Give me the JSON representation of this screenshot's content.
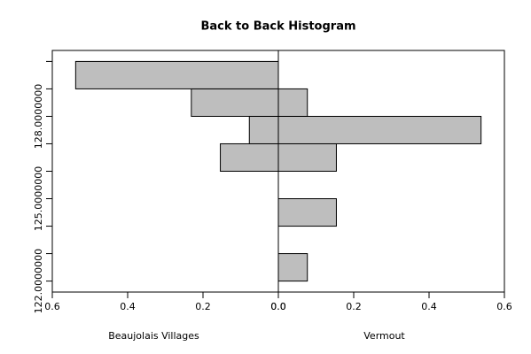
{
  "chart_data": {
    "type": "back-to-back-histogram",
    "title": "Back to Back Histogram",
    "bins": [
      122,
      123,
      124,
      125,
      126,
      127,
      128,
      129,
      130
    ],
    "series": [
      {
        "name": "Beaujolais Villages",
        "color": "#bebebe",
        "side": "left",
        "values": [
          0,
          0,
          0,
          0,
          0.154,
          0.077,
          0.231,
          0.538
        ]
      },
      {
        "name": "Vermout",
        "color": "#bebebe",
        "side": "right",
        "values": [
          0.077,
          0,
          0.154,
          0,
          0.154,
          0.538,
          0.077,
          0
        ]
      }
    ],
    "xlim": [
      0,
      0.6
    ],
    "xticks": [
      {
        "value": 0,
        "label": "0.0"
      },
      0.2,
      0.4,
      0.6
    ],
    "ylim": [
      121.6,
      130.4
    ],
    "yticks": [
      {
        "value": 122,
        "label": "122.0000000"
      },
      {
        "value": 123,
        "label": null
      },
      {
        "value": 124,
        "label": null
      },
      {
        "value": 125,
        "label": "125.0000000"
      },
      {
        "value": 126,
        "label": null
      },
      {
        "value": 127,
        "label": null
      },
      {
        "value": 128,
        "label": "128.0000000"
      },
      {
        "value": 129,
        "label": null
      },
      {
        "value": 130,
        "label": null
      }
    ]
  }
}
